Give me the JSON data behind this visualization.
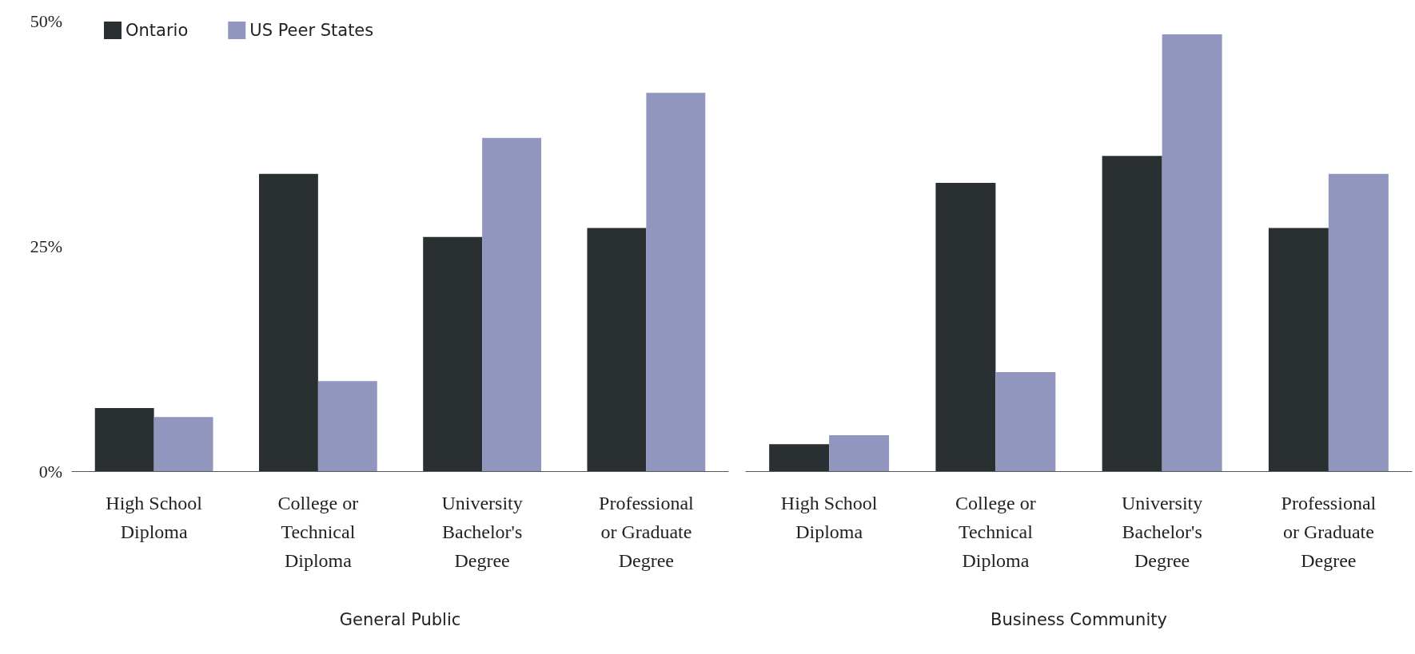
{
  "chart_data": [
    {
      "type": "bar",
      "xlabel": "General Public",
      "categories": [
        "High School\nDiploma",
        "College or\nTechnical\nDiploma",
        "University\nBachelor's\nDegree",
        "Professional\nor Graduate\nDegree"
      ],
      "series": [
        {
          "name": "Ontario",
          "color": "#2a2f31",
          "values": [
            7,
            33,
            26,
            27
          ]
        },
        {
          "name": "US Peer States",
          "color": "#9096bd",
          "values": [
            6,
            10,
            37,
            42
          ]
        }
      ],
      "ylim": [
        0,
        50
      ],
      "yticks": [
        {
          "value": 0,
          "label": "0%"
        },
        {
          "value": 25,
          "label": "25%"
        },
        {
          "value": 50,
          "label": "50%"
        }
      ],
      "grid": false,
      "legend": "top left"
    },
    {
      "type": "bar",
      "xlabel": "Business Community",
      "categories": [
        "High School\nDiploma",
        "College or\nTechnical\nDiploma",
        "University\nBachelor's\nDegree",
        "Professional\nor Graduate\nDegree"
      ],
      "series": [
        {
          "color": "#2a2f31",
          "values": [
            3,
            32,
            35,
            27
          ]
        },
        {
          "color": "#9096bd",
          "values": [
            4,
            11,
            48.5,
            33
          ]
        }
      ],
      "ylim": [
        0,
        50
      ],
      "grid": false,
      "tick_labels": "x"
    }
  ]
}
